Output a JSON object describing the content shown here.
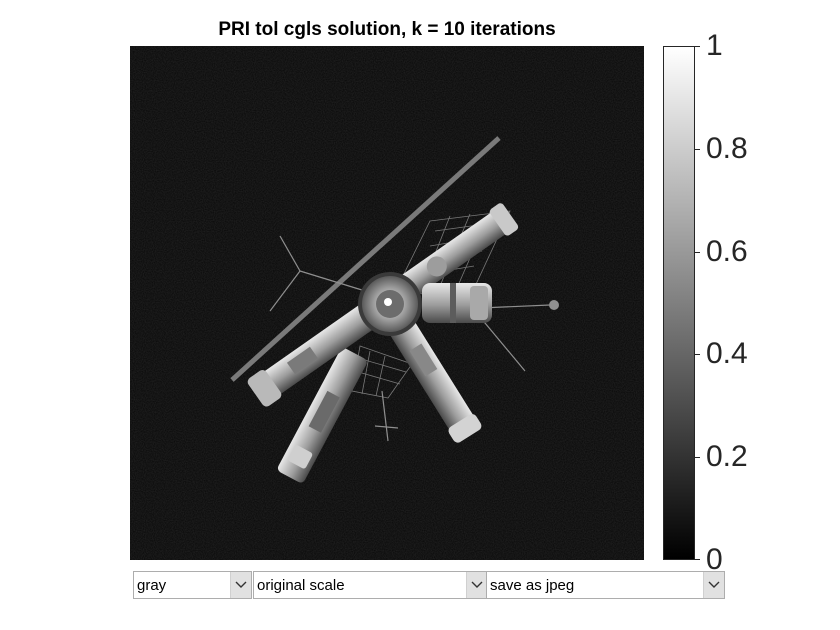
{
  "figure": {
    "title": "PRI tol cgls solution, k = 10 iterations"
  },
  "colorbar": {
    "colormap": "gray",
    "range": [
      0,
      1
    ],
    "ticks": [
      "0",
      "0.2",
      "0.4",
      "0.6",
      "0.8",
      "1"
    ]
  },
  "controls": {
    "colormap_select": {
      "value": "gray"
    },
    "scale_select": {
      "value": "original scale"
    },
    "save_select": {
      "value": "save as jpeg"
    }
  },
  "colors": {
    "background": "#ffffff",
    "image_background": "#050505",
    "axis_text": "#262626"
  }
}
